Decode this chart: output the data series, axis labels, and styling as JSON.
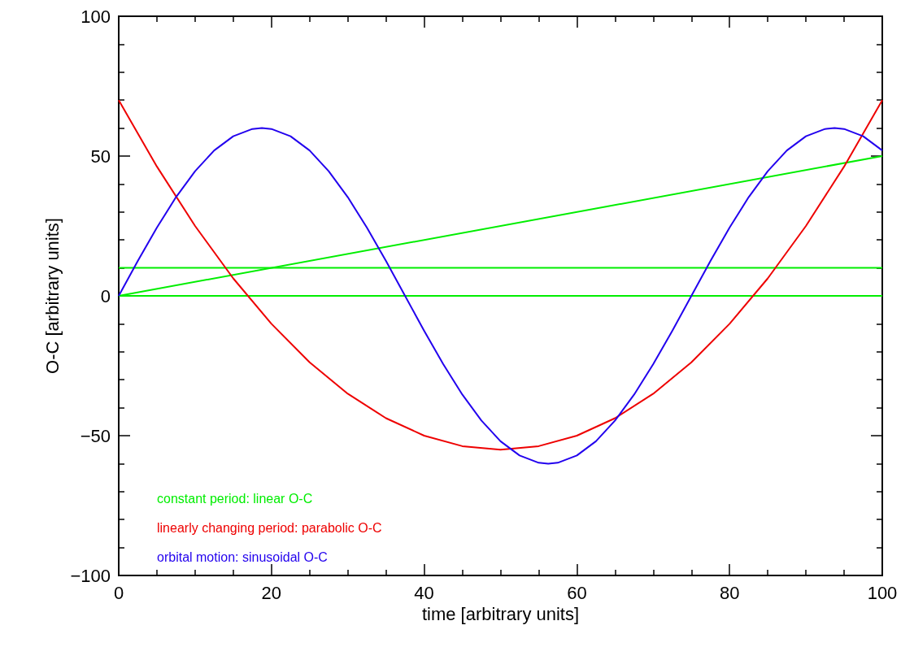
{
  "chart_data": {
    "type": "line",
    "xlabel": "time [arbitrary units]",
    "ylabel": "O-C [arbitrary units]",
    "xlim": [
      0,
      100
    ],
    "xticks": [
      0,
      20,
      40,
      60,
      80,
      100
    ],
    "ylim": [
      -100,
      100
    ],
    "yticks": [
      -100,
      -50,
      0,
      50,
      100
    ],
    "grid": false,
    "legend": false,
    "marker": "none",
    "line_style": "solid",
    "series": [
      {
        "name": "constant period: linear O-C",
        "color": "#00ee00",
        "x": [
          0,
          100
        ],
        "values": [
          0,
          50
        ]
      },
      {
        "color": "#00ee00",
        "x": [
          0,
          100
        ],
        "values": [
          0,
          0
        ]
      },
      {
        "color": "#00ee00",
        "x": [
          0,
          100
        ],
        "values": [
          10,
          10
        ]
      },
      {
        "name": "linearly changing period: parabolic O-C",
        "color": "#ee0000",
        "x": [
          0,
          5,
          10,
          15,
          20,
          25,
          30,
          35,
          40,
          45,
          50,
          55,
          60,
          65,
          70,
          75,
          80,
          85,
          90,
          95,
          100
        ],
        "values": [
          70,
          46.25,
          25,
          6.25,
          -10,
          -23.75,
          -35,
          -43.75,
          -50,
          -53.75,
          -55,
          -53.75,
          -50,
          -43.75,
          -35,
          -23.75,
          -10,
          6.25,
          25,
          46.25,
          70
        ]
      },
      {
        "name": "orbital motion: sinusoidal O-C",
        "color": "#2200ee",
        "x": [
          0,
          2.5,
          5,
          7.5,
          10,
          12.5,
          15,
          17.5,
          18.75,
          20,
          22.5,
          25,
          27.5,
          30,
          32.5,
          35,
          37.5,
          40,
          42.5,
          45,
          47.5,
          50,
          52.5,
          55,
          56.25,
          57.5,
          60,
          62.5,
          65,
          67.5,
          70,
          72.5,
          75,
          77.5,
          80,
          82.5,
          85,
          87.5,
          90,
          92.5,
          93.75,
          95,
          97.5,
          100
        ],
        "values": [
          0,
          12.5,
          24.4,
          35.3,
          44.6,
          52,
          57.1,
          59.7,
          60,
          59.7,
          57.1,
          52,
          44.6,
          35.3,
          24.4,
          12.5,
          0,
          -12.5,
          -24.4,
          -35.3,
          -44.6,
          -52,
          -57.1,
          -59.7,
          -60,
          -59.7,
          -57.1,
          -52,
          -44.6,
          -35.3,
          -24.4,
          -12.5,
          0,
          12.5,
          24.4,
          35.3,
          44.6,
          52,
          57.1,
          59.7,
          60,
          59.7,
          57.1,
          52
        ]
      }
    ]
  }
}
